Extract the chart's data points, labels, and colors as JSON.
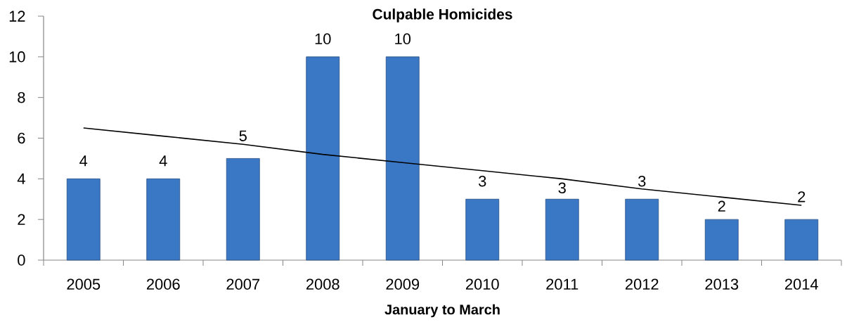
{
  "chart_data": {
    "type": "bar",
    "title": "Culpable Homicides",
    "xlabel": "January to March",
    "categories": [
      "2005",
      "2006",
      "2007",
      "2008",
      "2009",
      "2010",
      "2011",
      "2012",
      "2013",
      "2014"
    ],
    "series": [
      {
        "color": "#3a78c5",
        "values": [
          4,
          4,
          5,
          10,
          10,
          3,
          3,
          3,
          2,
          2
        ],
        "data_labels": true
      },
      {
        "type": "line",
        "color": "#000000",
        "values": [
          6.5,
          6.1,
          5.7,
          5.2,
          4.8,
          4.4,
          4.0,
          3.5,
          3.1,
          2.7
        ],
        "line_style": "solid",
        "marker": "none"
      }
    ],
    "ylim": [
      0,
      12
    ],
    "yticks": [
      0,
      2,
      4,
      6,
      8,
      10,
      12
    ]
  }
}
